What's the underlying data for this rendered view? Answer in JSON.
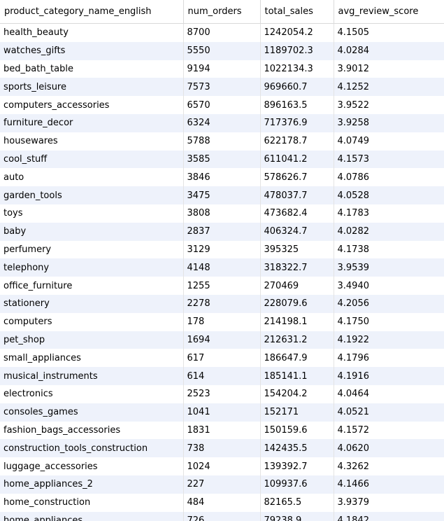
{
  "columns": [
    {
      "key": "category",
      "label": "product_category_name_english"
    },
    {
      "key": "num_orders",
      "label": "num_orders"
    },
    {
      "key": "total_sales",
      "label": "total_sales"
    },
    {
      "key": "avg_review",
      "label": "avg_review_score"
    }
  ],
  "rows": [
    [
      "health_beauty",
      "8700",
      "1242054.2",
      "4.1505"
    ],
    [
      "watches_gifts",
      "5550",
      "1189702.3",
      "4.0284"
    ],
    [
      "bed_bath_table",
      "9194",
      "1022134.3",
      "3.9012"
    ],
    [
      "sports_leisure",
      "7573",
      "969660.7",
      "4.1252"
    ],
    [
      "computers_accessories",
      "6570",
      "896163.5",
      "3.9522"
    ],
    [
      "furniture_decor",
      "6324",
      "717376.9",
      "3.9258"
    ],
    [
      "housewares",
      "5788",
      "622178.7",
      "4.0749"
    ],
    [
      "cool_stuff",
      "3585",
      "611041.2",
      "4.1573"
    ],
    [
      "auto",
      "3846",
      "578626.7",
      "4.0786"
    ],
    [
      "garden_tools",
      "3475",
      "478037.7",
      "4.0528"
    ],
    [
      "toys",
      "3808",
      "473682.4",
      "4.1783"
    ],
    [
      "baby",
      "2837",
      "406324.7",
      "4.0282"
    ],
    [
      "perfumery",
      "3129",
      "395325",
      "4.1738"
    ],
    [
      "telephony",
      "4148",
      "318322.7",
      "3.9539"
    ],
    [
      "office_furniture",
      "1255",
      "270469",
      "3.4940"
    ],
    [
      "stationery",
      "2278",
      "228079.6",
      "4.2056"
    ],
    [
      "computers",
      "178",
      "214198.1",
      "4.1750"
    ],
    [
      "pet_shop",
      "1694",
      "212631.2",
      "4.1922"
    ],
    [
      "small_appliances",
      "617",
      "186647.9",
      "4.1796"
    ],
    [
      "musical_instruments",
      "614",
      "185141.1",
      "4.1916"
    ],
    [
      "electronics",
      "2523",
      "154204.2",
      "4.0464"
    ],
    [
      "consoles_games",
      "1041",
      "152171",
      "4.0521"
    ],
    [
      "fashion_bags_accessories",
      "1831",
      "150159.6",
      "4.1572"
    ],
    [
      "construction_tools_construction",
      "738",
      "142435.5",
      "4.0620"
    ],
    [
      "luggage_accessories",
      "1024",
      "139392.7",
      "4.3262"
    ],
    [
      "home_appliances_2",
      "227",
      "109937.6",
      "4.1466"
    ],
    [
      "home_construction",
      "484",
      "82165.5",
      "3.9379"
    ],
    [
      "home_appliances",
      "726",
      "79238.9",
      "4.1842"
    ]
  ]
}
